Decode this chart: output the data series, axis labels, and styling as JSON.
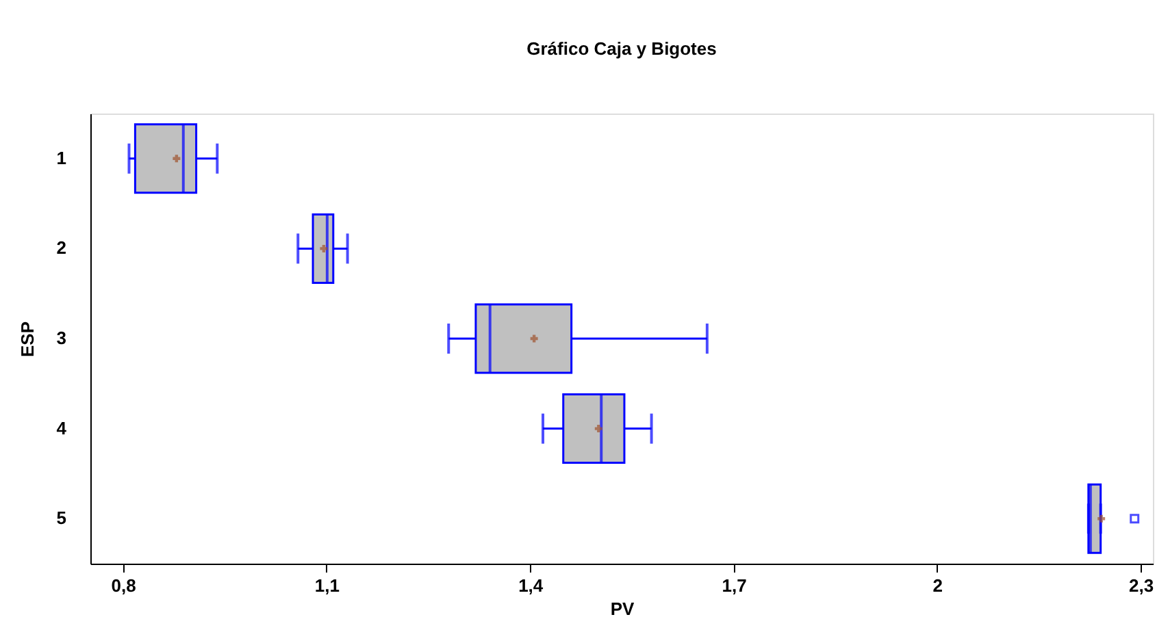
{
  "chart_data": {
    "type": "box",
    "title": "Gráfico Caja y Bigotes",
    "xlabel": "PV",
    "ylabel": "ESP",
    "orientation": "horizontal",
    "categories": [
      "1",
      "2",
      "3",
      "4",
      "5"
    ],
    "series": [
      {
        "color": "#0000ff",
        "boxes": [
          {
            "low": 0.809,
            "q1": 0.818,
            "median": 0.889,
            "q3": 0.908,
            "high": 0.939,
            "mean": 0.879
          },
          {
            "low": 1.058,
            "q1": 1.08,
            "median": 1.101,
            "q3": 1.11,
            "high": 1.131,
            "mean": 1.096
          },
          {
            "low": 1.28,
            "q1": 1.32,
            "median": 1.341,
            "q3": 1.461,
            "high": 1.661,
            "mean": 1.406
          },
          {
            "low": 1.419,
            "q1": 1.449,
            "median": 1.505,
            "q3": 1.539,
            "high": 1.579,
            "mean": 1.501
          },
          {
            "low": 2.223,
            "q1": 2.223,
            "median": 2.226,
            "q3": 2.241,
            "high": 2.241,
            "mean": 2.242,
            "outliers": [
              2.291
            ]
          }
        ]
      }
    ],
    "xlim": [
      0.752,
      2.318
    ],
    "xticks": [
      {
        "value": 0.8,
        "label": "0,8"
      },
      {
        "value": 1.1,
        "label": "1,1"
      },
      {
        "value": 1.4,
        "label": "1,4"
      },
      {
        "value": 1.7,
        "label": "1,7"
      },
      2,
      {
        "value": 2.3,
        "label": "2,3"
      }
    ],
    "grid": false,
    "legend": false
  }
}
